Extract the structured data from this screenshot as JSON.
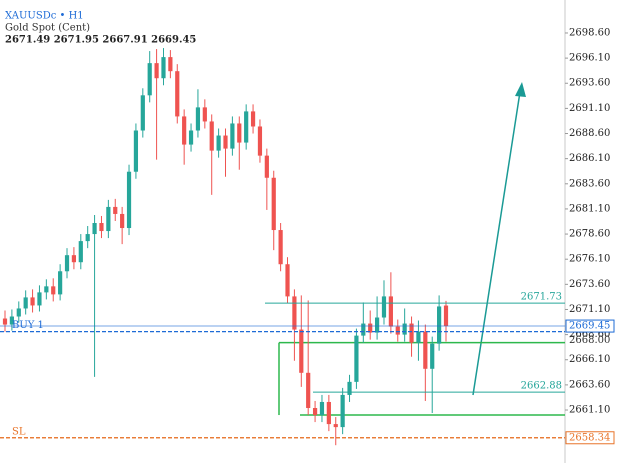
{
  "chart_data": {
    "type": "candlestick",
    "symbol": "XAUUSDc • H1",
    "subtitle": "Gold Spot (Cent)",
    "ohlc_label": "2671.49 2671.95 2667.91 2669.45",
    "up_color": "#26a69a",
    "down_color": "#ef5350",
    "ylim": [
      2655.83,
      2701.88
    ],
    "yticks": [
      {
        "value": 2661.1,
        "label": "2661.10"
      },
      {
        "value": 2663.6,
        "label": "2663.60"
      },
      {
        "value": 2666.1,
        "label": "2666.10"
      },
      {
        "value": 2668.6,
        "label": "2668.60"
      },
      {
        "value": 2671.1,
        "label": "2671.10"
      },
      {
        "value": 2673.6,
        "label": "2673.60"
      },
      {
        "value": 2676.1,
        "label": "2676.10"
      },
      {
        "value": 2678.6,
        "label": "2678.60"
      },
      {
        "value": 2681.1,
        "label": "2681.10"
      },
      {
        "value": 2683.6,
        "label": "2683.60"
      },
      {
        "value": 2686.1,
        "label": "2686.10"
      },
      {
        "value": 2688.6,
        "label": "2688.60"
      },
      {
        "value": 2691.1,
        "label": "2691.10"
      },
      {
        "value": 2693.6,
        "label": "2693.60"
      },
      {
        "value": 2696.1,
        "label": "2696.10"
      },
      {
        "value": 2698.6,
        "label": "2698.60"
      }
    ],
    "open": [
      2670.2,
      2669.6,
      2670.4,
      2671.2,
      2672.3,
      2671.5,
      2672.8,
      2673.4,
      2672.6,
      2674.9,
      2676.5,
      2675.8,
      2677.9,
      2678.6,
      2679.7,
      2678.9,
      2681.3,
      2680.6,
      2679.2,
      2684.8,
      2688.9,
      2692.4,
      2695.6,
      2694.1,
      2696.2,
      2694.8,
      2690.3,
      2687.5,
      2688.9,
      2691.2,
      2689.8,
      2686.9,
      2688.4,
      2687.1,
      2689.6,
      2687.7,
      2690.8,
      2689.3,
      2686.4,
      2684.2,
      2679.0,
      2675.6,
      2672.4,
      2669.1,
      2664.8,
      2661.3,
      2660.6,
      2661.9,
      2659.7,
      2659.4,
      2662.6,
      2663.9,
      2668.5,
      2669.7,
      2668.8,
      2670.3,
      2672.4,
      2669.4,
      2668.6,
      2669.7,
      2667.8,
      2668.9,
      2665.2,
      2667.7,
      2671.49
    ],
    "high": [
      2671.0,
      2671.1,
      2671.9,
      2673.0,
      2673.1,
      2673.5,
      2674.1,
      2674.2,
      2675.6,
      2677.2,
      2677.3,
      2678.6,
      2679.4,
      2680.5,
      2680.4,
      2682.0,
      2682.1,
      2681.3,
      2685.5,
      2689.6,
      2693.1,
      2696.8,
      2697.0,
      2697.1,
      2696.9,
      2695.5,
      2691.0,
      2689.6,
      2693.0,
      2692.0,
      2690.5,
      2689.1,
      2689.1,
      2690.3,
      2690.3,
      2691.5,
      2691.5,
      2690.0,
      2687.1,
      2684.9,
      2679.7,
      2676.3,
      2673.1,
      2672.5,
      2672.0,
      2662.0,
      2662.6,
      2662.6,
      2660.4,
      2663.3,
      2664.6,
      2669.2,
      2671.8,
      2671.0,
      2672.4,
      2674.0,
      2674.8,
      2670.1,
      2671.2,
      2670.4,
      2670.0,
      2669.6,
      2668.4,
      2672.5,
      2671.95
    ],
    "low": [
      2668.9,
      2669.0,
      2669.8,
      2670.6,
      2670.8,
      2670.9,
      2672.1,
      2671.9,
      2672.0,
      2674.2,
      2675.1,
      2675.1,
      2677.2,
      2664.4,
      2678.2,
      2678.2,
      2679.9,
      2677.6,
      2678.5,
      2684.1,
      2688.2,
      2691.7,
      2686.0,
      2693.4,
      2694.1,
      2689.6,
      2685.5,
      2686.8,
      2688.2,
      2689.1,
      2682.5,
      2686.2,
      2684.3,
      2686.4,
      2685.0,
      2687.0,
      2688.6,
      2685.7,
      2681.0,
      2677.0,
      2674.9,
      2671.7,
      2666.0,
      2663.4,
      2660.6,
      2659.9,
      2659.9,
      2659.0,
      2657.6,
      2658.7,
      2661.9,
      2663.2,
      2667.8,
      2668.1,
      2668.1,
      2669.6,
      2668.7,
      2667.9,
      2667.9,
      2666.4,
      2666.0,
      2662.0,
      2660.8,
      2667.0,
      2667.91
    ],
    "close": [
      2669.6,
      2670.4,
      2671.2,
      2672.3,
      2671.5,
      2672.8,
      2673.4,
      2672.6,
      2674.9,
      2676.5,
      2675.8,
      2677.9,
      2678.6,
      2679.7,
      2678.9,
      2681.3,
      2680.6,
      2679.2,
      2684.8,
      2688.9,
      2692.4,
      2695.6,
      2694.1,
      2696.2,
      2694.8,
      2690.3,
      2687.5,
      2688.9,
      2691.2,
      2689.8,
      2686.9,
      2688.4,
      2687.1,
      2689.6,
      2687.7,
      2690.8,
      2689.3,
      2686.4,
      2684.2,
      2679.0,
      2675.6,
      2672.4,
      2669.1,
      2664.8,
      2661.3,
      2660.6,
      2661.9,
      2659.7,
      2659.4,
      2662.6,
      2663.9,
      2668.5,
      2669.7,
      2668.8,
      2670.3,
      2672.4,
      2669.4,
      2668.6,
      2669.7,
      2667.8,
      2668.9,
      2665.2,
      2667.7,
      2671.4,
      2669.45
    ],
    "levels": [
      {
        "value": 2671.73,
        "label": "2671.73",
        "color": "#26a69a",
        "place": "chart",
        "dashed": false
      },
      {
        "value": 2669.45,
        "label": "2669.45",
        "color": "#1e6bd6",
        "place": "axis",
        "dashed": false
      },
      {
        "value": 2668.9,
        "label": "BUY 1",
        "color": "#1e6bd6",
        "place": "left",
        "dashed": true
      },
      {
        "value": 2668.0,
        "label": "2668.00",
        "color": "#333333",
        "place": "axis-text",
        "dashed": false
      },
      {
        "value": 2662.88,
        "label": "2662.88",
        "color": "#26a69a",
        "place": "chart",
        "dashed": false
      },
      {
        "value": 2658.34,
        "label": "2658.34",
        "color": "#e8742a",
        "place": "axis",
        "dashed": true
      },
      {
        "value": 2658.34,
        "label": "SL",
        "color": "#e8742a",
        "place": "left",
        "dashed": true
      }
    ],
    "zone": {
      "top": 2667.8,
      "bottom": 2660.6,
      "color": "#2db84d"
    }
  }
}
